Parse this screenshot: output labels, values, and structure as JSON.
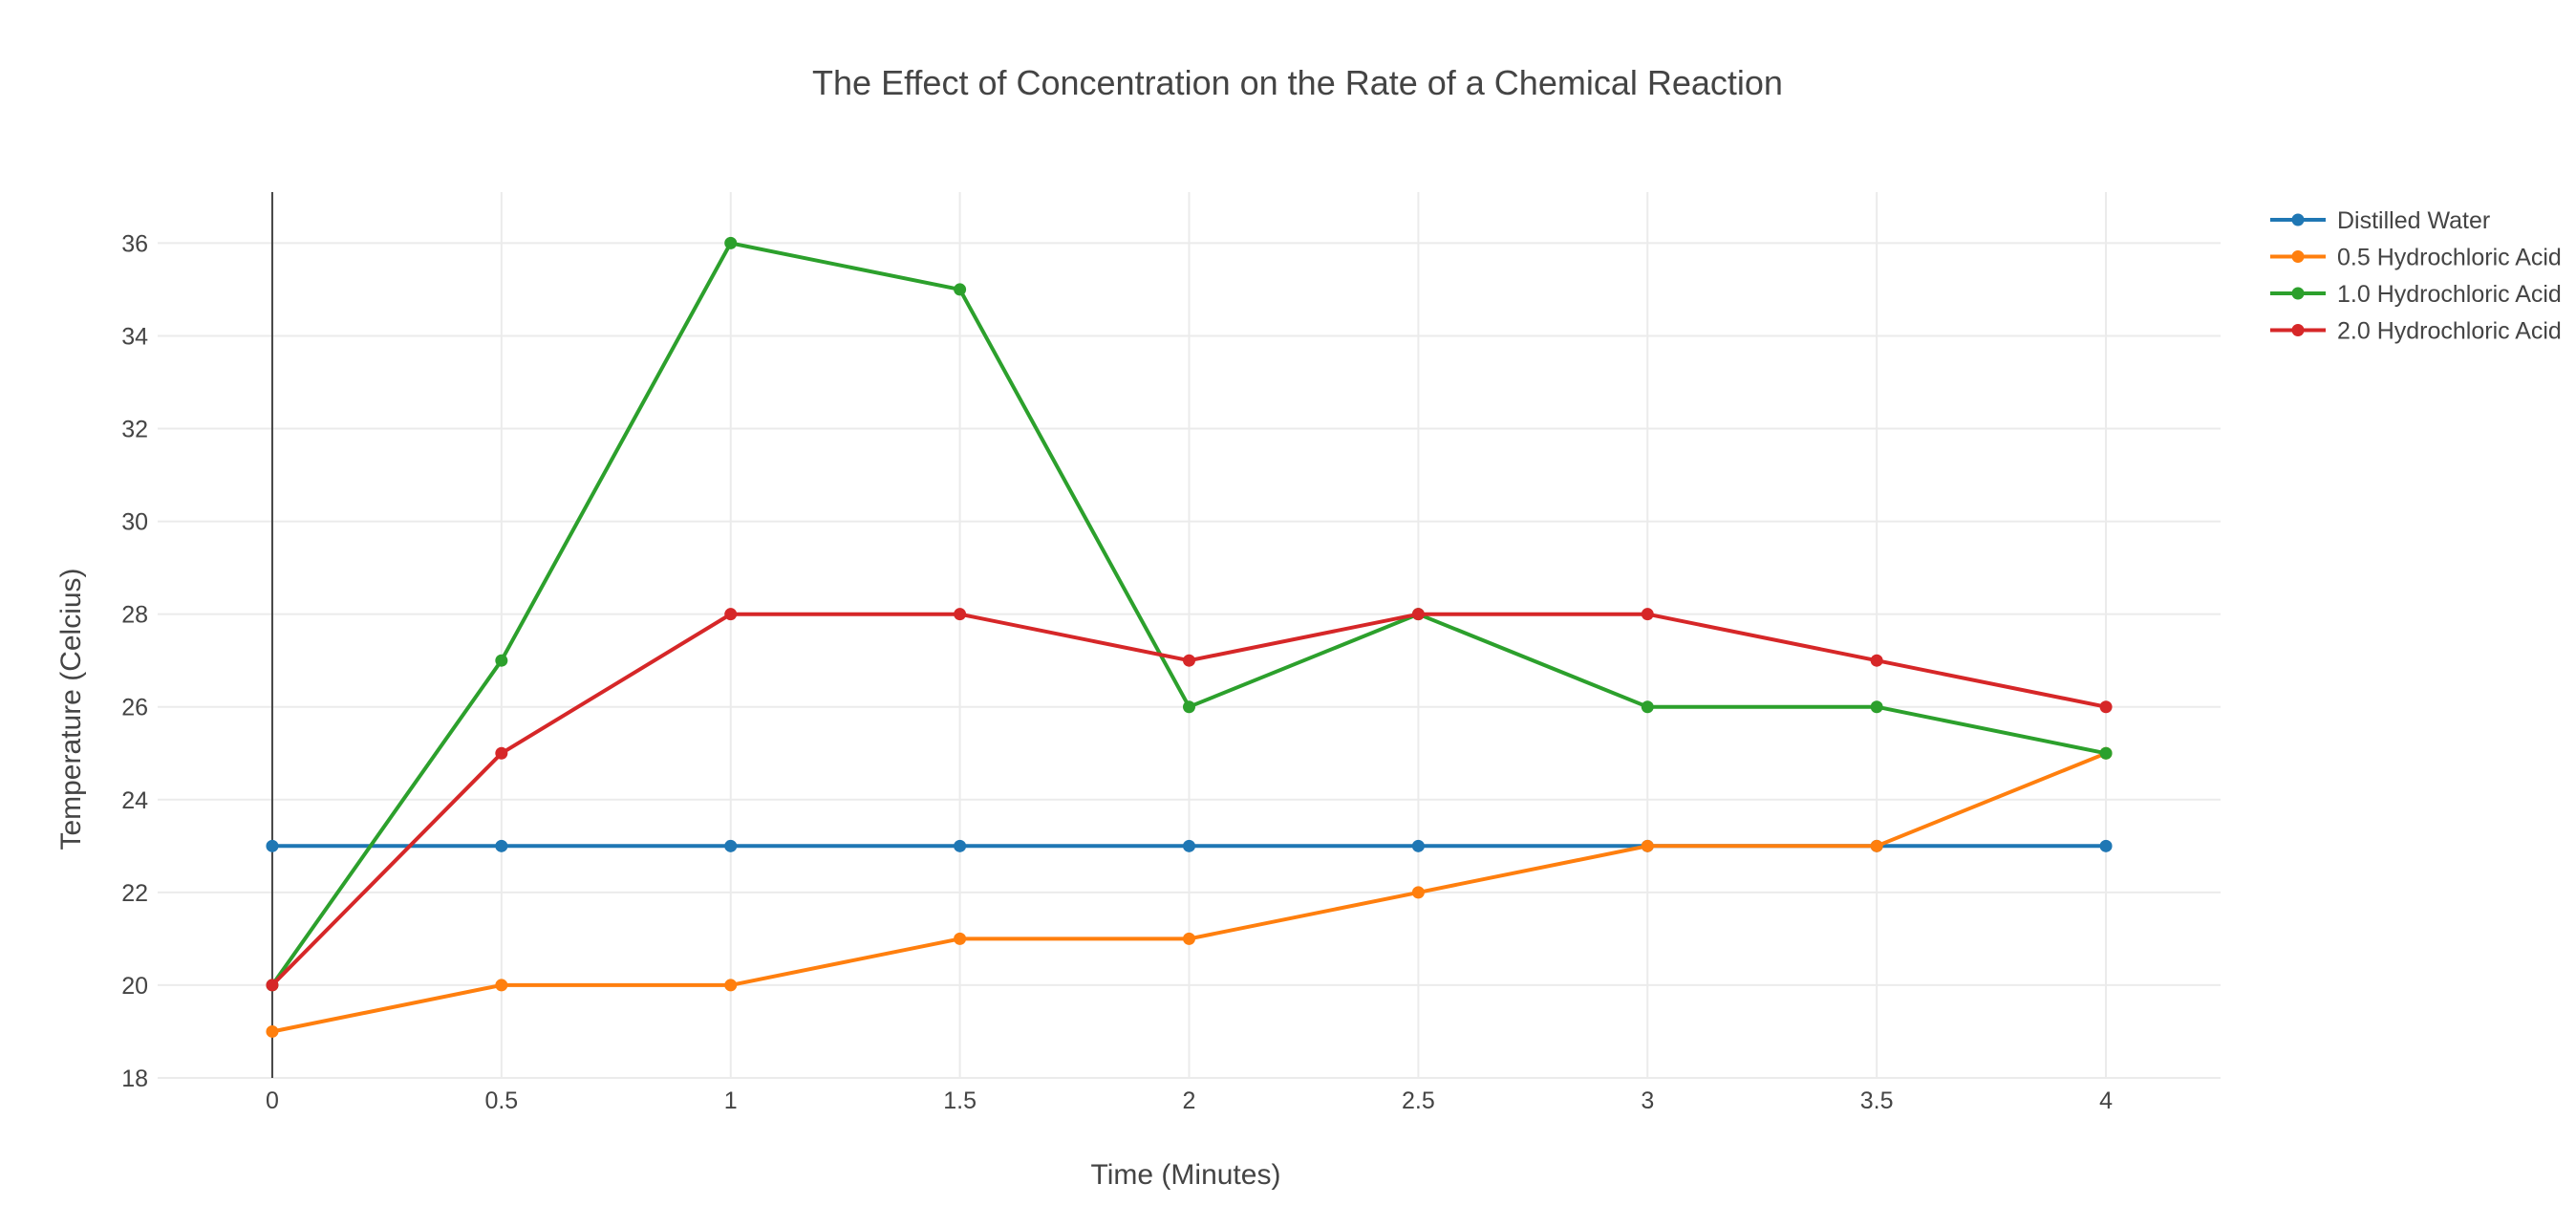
{
  "chart_data": {
    "type": "line",
    "title": "The Effect of Concentration on the Rate of a Chemical Reaction",
    "xlabel": "Time (Minutes)",
    "ylabel": "Temperature (Celcius)",
    "x": [
      0,
      0.5,
      1,
      1.5,
      2,
      2.5,
      3,
      3.5,
      4
    ],
    "x_tick_labels": [
      "0",
      "0.5",
      "1",
      "1.5",
      "2",
      "2.5",
      "3",
      "3.5",
      "4"
    ],
    "y_ticks": [
      18,
      20,
      22,
      24,
      26,
      28,
      30,
      32,
      34,
      36
    ],
    "xlim": [
      -0.25,
      4.25
    ],
    "ylim": [
      18,
      37.1
    ],
    "grid": true,
    "legend_position": "top-right",
    "series": [
      {
        "name": "Distilled Water",
        "color": "#1f77b4",
        "values": [
          23,
          23,
          23,
          23,
          23,
          23,
          23,
          23,
          23
        ]
      },
      {
        "name": "0.5 Hydrochloric Acid",
        "color": "#ff7f0e",
        "values": [
          19,
          20,
          20,
          21,
          21,
          22,
          23,
          23,
          25
        ]
      },
      {
        "name": "1.0 Hydrochloric Acid",
        "color": "#2ca02c",
        "values": [
          20,
          27,
          36,
          35,
          26,
          28,
          26,
          26,
          25
        ]
      },
      {
        "name": "2.0 Hydrochloric Acid",
        "color": "#d62728",
        "values": [
          20,
          25,
          28,
          28,
          27,
          28,
          28,
          27,
          26
        ]
      }
    ]
  }
}
